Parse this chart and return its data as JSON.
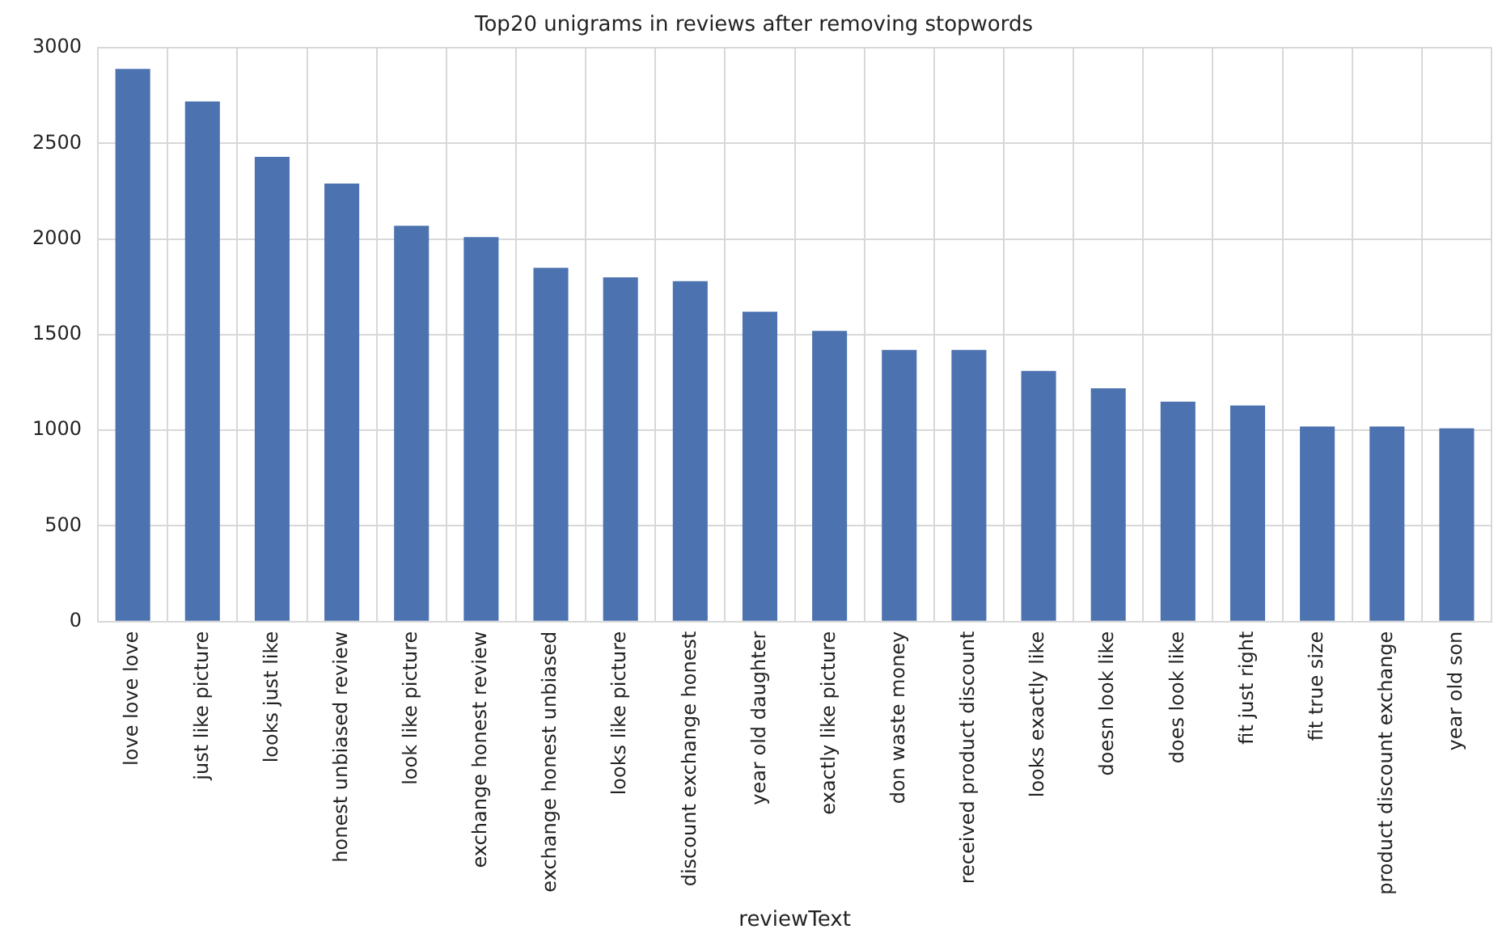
{
  "chart_data": {
    "type": "bar",
    "title": "Top20 unigrams in reviews after removing stopwords",
    "xlabel": "reviewText",
    "categories": [
      "love love love",
      "just like picture",
      "looks just like",
      "honest unbiased review",
      "look like picture",
      "exchange honest review",
      "exchange honest unbiased",
      "looks like picture",
      "discount exchange honest",
      "year old daughter",
      "exactly like picture",
      "don waste money",
      "received product discount",
      "looks exactly like",
      "doesn look like",
      "does look like",
      "fit just right",
      "fit true size",
      "product discount exchange",
      "year old son"
    ],
    "values": [
      2890,
      2720,
      2430,
      2290,
      2070,
      2010,
      1850,
      1800,
      1780,
      1620,
      1520,
      1420,
      1420,
      1310,
      1220,
      1150,
      1130,
      1020,
      1020,
      1010
    ],
    "color": "#4c72b0",
    "ylim": [
      0,
      3000
    ],
    "yticks": [
      0,
      500,
      1000,
      1500,
      2000,
      2500,
      3000
    ],
    "grid": true
  }
}
